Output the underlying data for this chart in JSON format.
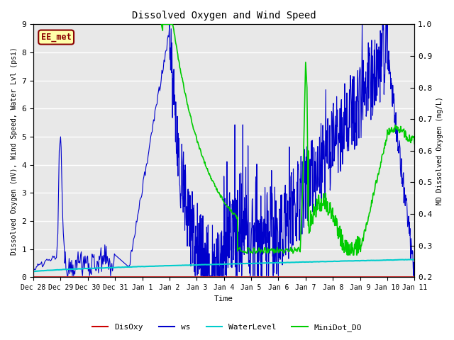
{
  "title": "Dissolved Oxygen and Wind Speed",
  "xlabel": "Time",
  "ylabel_left": "Dissolved Oxygen (mV), Wind Speed, Water Lvl (psi)",
  "ylabel_right": "MD Dissolved Oxygen (mg/L)",
  "annotation": "EE_met",
  "ylim_left": [
    0.0,
    9.0
  ],
  "ylim_right": [
    0.2,
    1.0
  ],
  "plot_bg_color": "#e8e8e8",
  "xtick_labels": [
    "Dec 28",
    "Dec 29",
    "Dec 30",
    "Dec 31",
    "Jan 1",
    "Jan 2",
    "Jan 3",
    "Jan 4",
    "Jan 5",
    "Jan 6",
    "Jan 7",
    "Jan 8",
    "Jan 9",
    "Jan 10",
    "Jan 11"
  ],
  "xtick_positions": [
    0,
    1,
    2,
    3,
    4,
    5,
    6,
    7,
    8,
    9,
    10,
    11,
    12,
    13,
    14
  ],
  "colors": {
    "DisOxy": "#cc0000",
    "ws": "#0000cc",
    "WaterLevel": "#00cccc",
    "MiniDot_DO": "#00cc00"
  },
  "legend_labels": [
    "DisOxy",
    "ws",
    "WaterLevel",
    "MiniDot_DO"
  ],
  "yticks_left": [
    0.0,
    1.0,
    2.0,
    3.0,
    4.0,
    5.0,
    6.0,
    7.0,
    8.0,
    9.0
  ],
  "yticks_right": [
    0.2,
    0.3,
    0.4,
    0.5,
    0.6,
    0.7,
    0.8,
    0.9,
    1.0
  ]
}
